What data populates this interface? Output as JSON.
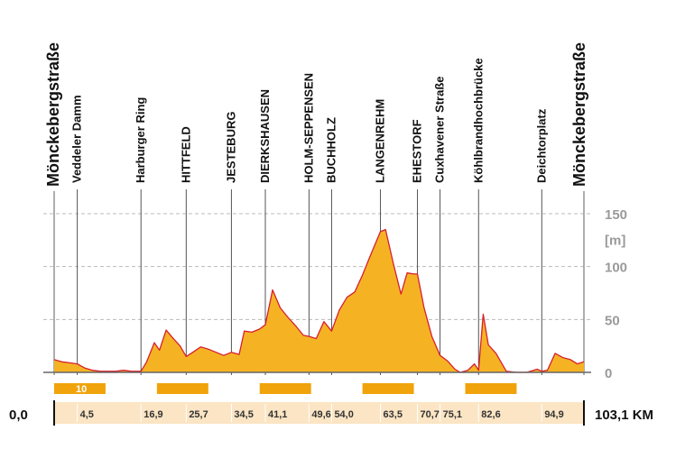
{
  "chart_data": {
    "type": "area",
    "title": "",
    "xlabel": "KM",
    "ylabel": "[m]",
    "xlim": [
      0,
      103.1
    ],
    "ylim": [
      0,
      150
    ],
    "y_ticks": [
      "0",
      "50",
      "100",
      "150"
    ],
    "y_unit": "[m]",
    "x_start_label": "0,0",
    "x_end_label": "103,1 KM",
    "x_ticks": [
      {
        "km": 4.5,
        "label": "4,5"
      },
      {
        "km": 16.9,
        "label": "16,9"
      },
      {
        "km": 25.7,
        "label": "25,7"
      },
      {
        "km": 34.5,
        "label": "34,5"
      },
      {
        "km": 41.1,
        "label": "41,1"
      },
      {
        "km": 49.6,
        "label": "49,6"
      },
      {
        "km": 54.0,
        "label": "54,0"
      },
      {
        "km": 63.5,
        "label": "63,5"
      },
      {
        "km": 70.7,
        "label": "70,7"
      },
      {
        "km": 75.1,
        "label": "75,1"
      },
      {
        "km": 82.6,
        "label": "82,6"
      },
      {
        "km": 94.9,
        "label": "94,9"
      }
    ],
    "waypoints": [
      {
        "km": 0,
        "name": "Mönckebergstraße",
        "emphasis": true
      },
      {
        "km": 4.5,
        "name": "Veddeler Damm"
      },
      {
        "km": 16.9,
        "name": "Harburger Ring"
      },
      {
        "km": 25.7,
        "name": "HITTFELD"
      },
      {
        "km": 34.5,
        "name": "JESTEBURG"
      },
      {
        "km": 41.1,
        "name": "DIERKSHAUSEN"
      },
      {
        "km": 49.6,
        "name": "HOLM-SEPPENSEN"
      },
      {
        "km": 54.0,
        "name": "BUCHHOLZ"
      },
      {
        "km": 63.5,
        "name": "LANGENREHM"
      },
      {
        "km": 70.7,
        "name": "EHESTORF"
      },
      {
        "km": 75.1,
        "name": "Cuxhavener Straße"
      },
      {
        "km": 82.6,
        "name": "Köhlbrandhochbrücke"
      },
      {
        "km": 94.9,
        "name": "Deichtorplatz"
      },
      {
        "km": 103.1,
        "name": "Mönckebergstraße",
        "emphasis": true
      }
    ],
    "series": [
      {
        "name": "elevation",
        "x": [
          0,
          1.5,
          3,
          4.5,
          6,
          7.5,
          9,
          10.5,
          12,
          13.5,
          15,
          16.9,
          18,
          19.5,
          20.5,
          21.8,
          23,
          24.5,
          25.7,
          27,
          28.5,
          30,
          31.5,
          33,
          34.5,
          36,
          37,
          38.5,
          40,
          41.1,
          42.5,
          44,
          45.5,
          47,
          48.5,
          49.6,
          51,
          52.5,
          54,
          55.5,
          57,
          58.5,
          60,
          61.5,
          63.5,
          64.5,
          66,
          67.5,
          68.7,
          70,
          70.7,
          72,
          73.5,
          75.1,
          76.5,
          78,
          79,
          80.5,
          81.8,
          82.6,
          83.5,
          84.5,
          86,
          88,
          90,
          92,
          94,
          94.9,
          96,
          97.5,
          99,
          100.5,
          101.8,
          103.1
        ],
        "y": [
          12,
          10,
          9,
          8,
          4,
          2,
          1,
          1,
          1,
          2,
          1,
          1,
          10,
          28,
          21,
          40,
          33,
          25,
          15,
          19,
          24,
          22,
          19,
          16,
          19,
          17,
          39,
          38,
          41,
          45,
          78,
          61,
          52,
          44,
          35,
          34,
          32,
          48,
          39,
          59,
          71,
          76,
          92,
          110,
          133,
          135,
          103,
          74,
          94,
          93,
          93,
          61,
          34,
          16,
          11,
          3,
          0,
          2,
          8,
          2,
          55,
          26,
          18,
          1,
          0,
          0,
          3,
          1,
          2,
          18,
          14,
          12,
          8,
          10
        ]
      }
    ],
    "segments": [
      {
        "start": 0,
        "end": 10,
        "label": "10"
      },
      {
        "start": 20,
        "end": 30,
        "label": ""
      },
      {
        "start": 40,
        "end": 50,
        "label": ""
      },
      {
        "start": 60,
        "end": 70,
        "label": ""
      },
      {
        "start": 80,
        "end": 90,
        "label": ""
      }
    ],
    "grid": true,
    "colors": {
      "fill": "#f5b324",
      "stroke": "#d6202e",
      "segment": "#f0a30a",
      "axis_band": "#fbe5c4",
      "grid": "#bbbbbb",
      "waypoint_line": "#555555"
    }
  }
}
